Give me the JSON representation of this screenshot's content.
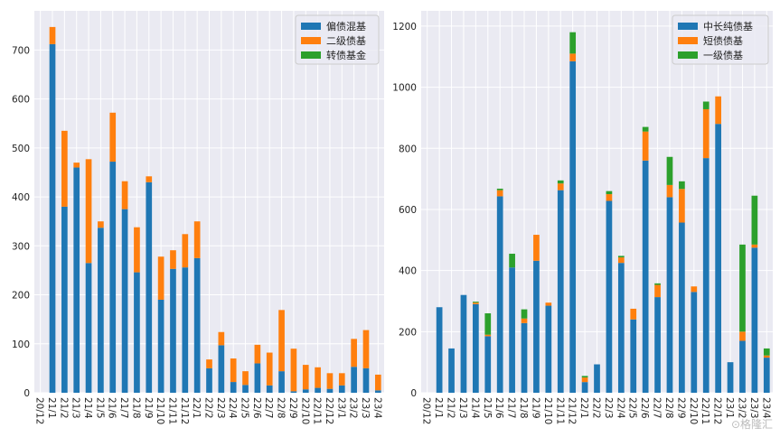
{
  "chart_data": [
    {
      "type": "bar",
      "stacked": true,
      "categories": [
        "20/12",
        "21/1",
        "21/2",
        "21/3",
        "21/4",
        "21/5",
        "21/6",
        "21/7",
        "21/8",
        "21/9",
        "21/10",
        "21/11",
        "21/12",
        "22/1",
        "22/2",
        "22/3",
        "22/4",
        "22/5",
        "22/6",
        "22/7",
        "22/8",
        "22/9",
        "22/10",
        "22/11",
        "22/12",
        "23/1",
        "23/2",
        "23/3",
        "23/4"
      ],
      "series": [
        {
          "name": "偏债混基",
          "color": "#1f77b4",
          "values": [
            0,
            712,
            380,
            460,
            265,
            337,
            472,
            375,
            246,
            430,
            190,
            253,
            256,
            275,
            50,
            97,
            22,
            16,
            60,
            15,
            44,
            3,
            7,
            10,
            8,
            15,
            53,
            50,
            5
          ]
        },
        {
          "name": "二级债基",
          "color": "#ff7f0e",
          "values": [
            0,
            35,
            155,
            10,
            212,
            13,
            100,
            57,
            92,
            12,
            88,
            38,
            68,
            75,
            18,
            27,
            48,
            28,
            38,
            67,
            125,
            87,
            50,
            42,
            32,
            25,
            57,
            78,
            32
          ]
        },
        {
          "name": "转债基金",
          "color": "#2ca02c",
          "values": [
            0,
            0,
            0,
            0,
            0,
            0,
            0,
            0,
            0,
            0,
            0,
            0,
            0,
            0,
            0,
            0,
            0,
            0,
            0,
            0,
            0,
            0,
            0,
            0,
            0,
            0,
            0,
            0,
            0
          ]
        }
      ],
      "ylim": [
        0,
        780
      ],
      "yticks": [
        0,
        100,
        200,
        300,
        400,
        500,
        600,
        700
      ],
      "grid": true,
      "legend": "top-right"
    },
    {
      "type": "bar",
      "stacked": true,
      "categories": [
        "20/12",
        "21/1",
        "21/2",
        "21/3",
        "21/4",
        "21/5",
        "21/6",
        "21/7",
        "21/8",
        "21/9",
        "21/10",
        "21/11",
        "21/12",
        "22/1",
        "22/2",
        "22/3",
        "22/4",
        "22/5",
        "22/6",
        "22/7",
        "22/8",
        "22/9",
        "22/10",
        "22/11",
        "22/12",
        "23/1",
        "23/2",
        "23/3",
        "23/4"
      ],
      "series": [
        {
          "name": "中长纯债基",
          "color": "#1f77b4",
          "values": [
            0,
            280,
            145,
            320,
            290,
            185,
            643,
            410,
            228,
            432,
            285,
            663,
            1085,
            35,
            93,
            628,
            425,
            240,
            760,
            313,
            640,
            557,
            330,
            768,
            880,
            100,
            170,
            475,
            115
          ]
        },
        {
          "name": "短债债基",
          "color": "#ff7f0e",
          "values": [
            0,
            0,
            0,
            0,
            5,
            5,
            20,
            0,
            15,
            85,
            10,
            22,
            25,
            15,
            0,
            22,
            18,
            35,
            95,
            40,
            40,
            110,
            18,
            160,
            90,
            0,
            30,
            10,
            7
          ]
        },
        {
          "name": "一级债基",
          "color": "#2ca02c",
          "values": [
            0,
            0,
            0,
            0,
            3,
            70,
            5,
            45,
            30,
            0,
            0,
            10,
            70,
            5,
            0,
            10,
            5,
            0,
            15,
            5,
            92,
            25,
            0,
            25,
            0,
            0,
            285,
            160,
            23
          ]
        }
      ],
      "ylim": [
        0,
        1250
      ],
      "yticks": [
        0,
        200,
        400,
        600,
        800,
        1000,
        1200
      ],
      "grid": true,
      "legend": "top-right"
    }
  ]
}
